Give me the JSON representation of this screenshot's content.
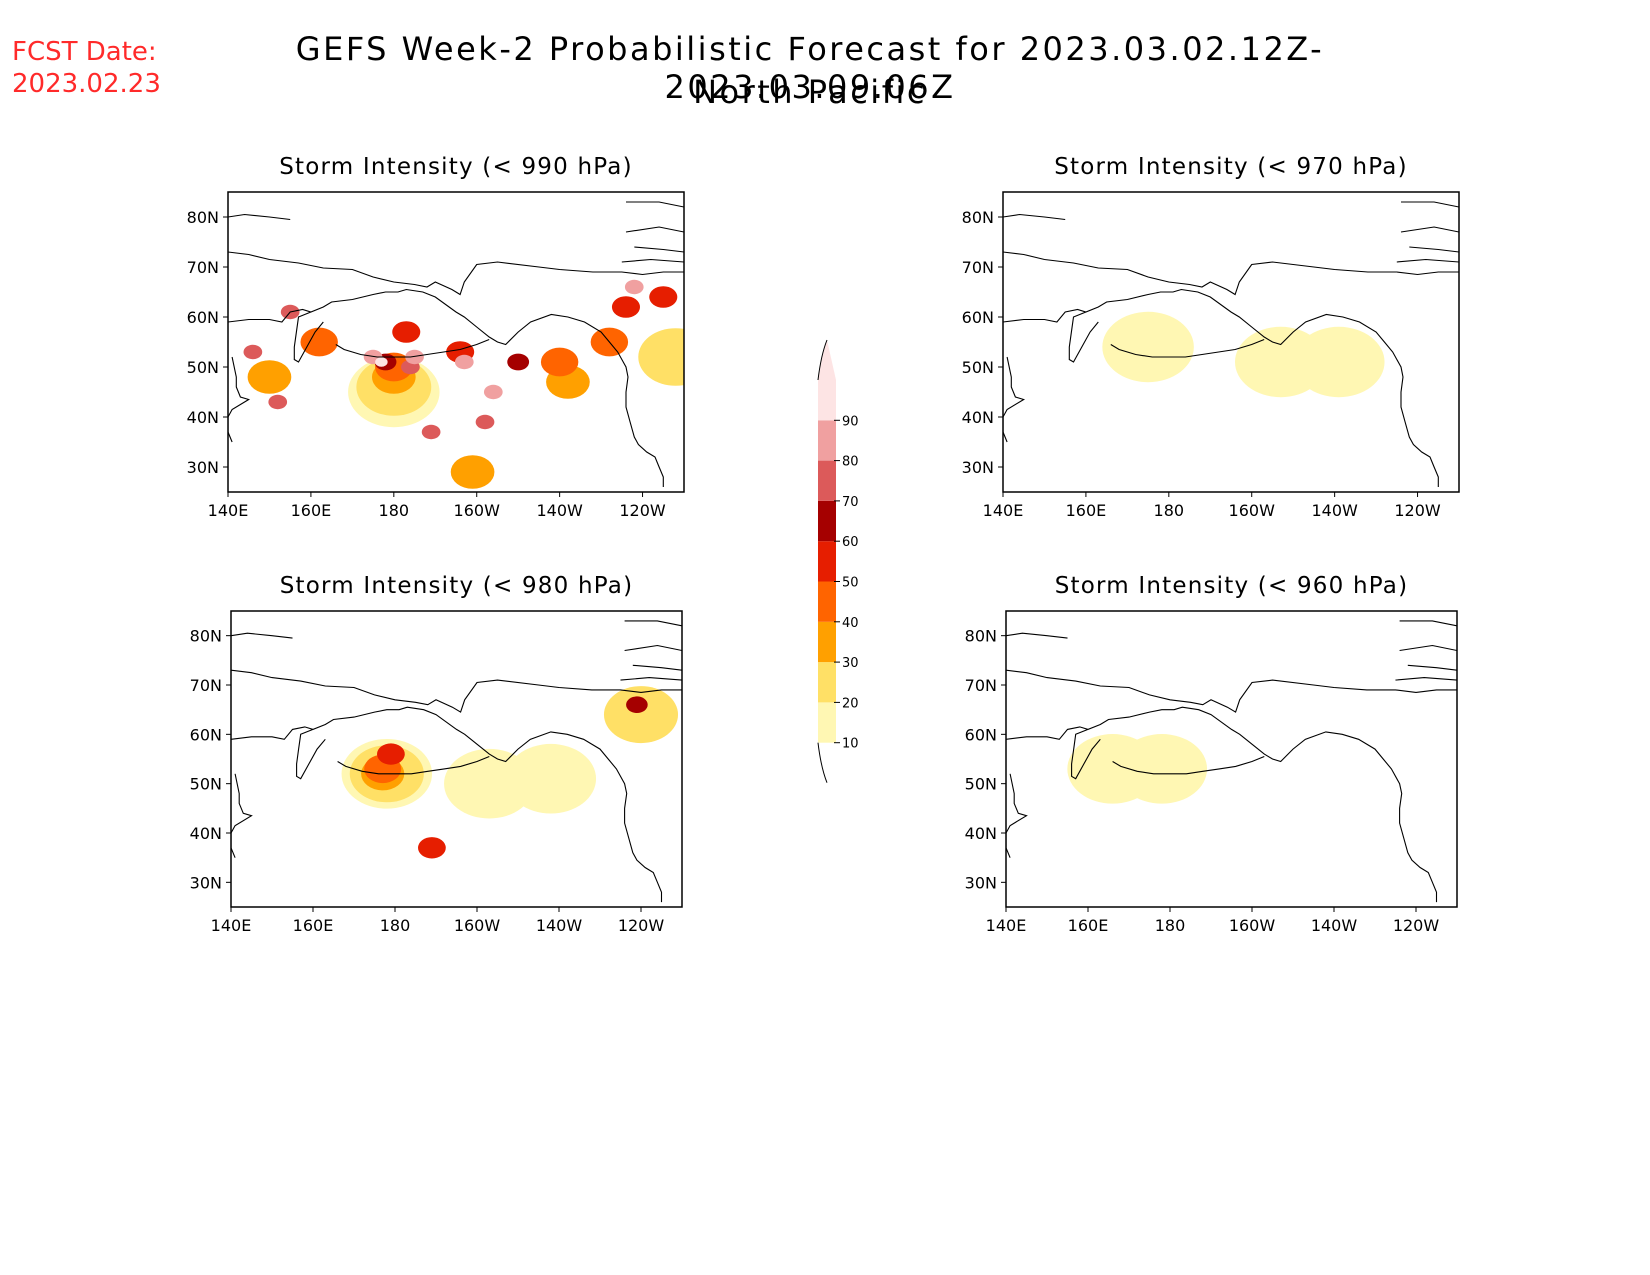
{
  "header": {
    "fcst_label": "FCST Date:",
    "fcst_date": "2023.02.23",
    "title": "GEFS Week-2 Probabilistic Forecast for 2023.03.02.12Z-2023.03.09.06Z",
    "region": "North Pacific"
  },
  "chart_data": [
    {
      "type": "heatmap",
      "title": "Storm Intensity (< 990 hPa)",
      "x_ticks": [
        "140E",
        "160E",
        "180",
        "160W",
        "140W",
        "120W"
      ],
      "y_ticks": [
        "80N",
        "70N",
        "60N",
        "50N",
        "40N",
        "30N"
      ],
      "xlim_deg_east": [
        140,
        250
      ],
      "ylim_deg_north": [
        25,
        85
      ],
      "regions": [
        {
          "lon": 177,
          "lat": 51,
          "level": 90
        },
        {
          "lon": 175,
          "lat": 52,
          "level": 80
        },
        {
          "lon": 185,
          "lat": 52,
          "level": 80
        },
        {
          "lon": 197,
          "lat": 51,
          "level": 80
        },
        {
          "lon": 204,
          "lat": 45,
          "level": 80
        },
        {
          "lon": 238,
          "lat": 66,
          "level": 80
        },
        {
          "lon": 184,
          "lat": 50,
          "level": 70
        },
        {
          "lon": 155,
          "lat": 61,
          "level": 70
        },
        {
          "lon": 146,
          "lat": 53,
          "level": 70
        },
        {
          "lon": 152,
          "lat": 43,
          "level": 70
        },
        {
          "lon": 189,
          "lat": 37,
          "level": 70
        },
        {
          "lon": 202,
          "lat": 39,
          "level": 70
        },
        {
          "lon": 178,
          "lat": 51,
          "level": 60
        },
        {
          "lon": 210,
          "lat": 51,
          "level": 60
        },
        {
          "lon": 183,
          "lat": 57,
          "level": 50
        },
        {
          "lon": 196,
          "lat": 53,
          "level": 50
        },
        {
          "lon": 236,
          "lat": 62,
          "level": 50
        },
        {
          "lon": 245,
          "lat": 64,
          "level": 50
        },
        {
          "lon": 180,
          "lat": 50,
          "level": 40
        },
        {
          "lon": 162,
          "lat": 55,
          "level": 40
        },
        {
          "lon": 220,
          "lat": 51,
          "level": 40
        },
        {
          "lon": 232,
          "lat": 55,
          "level": 40
        },
        {
          "lon": 180,
          "lat": 48,
          "level": 30
        },
        {
          "lon": 150,
          "lat": 48,
          "level": 30
        },
        {
          "lon": 222,
          "lat": 47,
          "level": 30
        },
        {
          "lon": 248,
          "lat": 52,
          "level": 20
        },
        {
          "lon": 199,
          "lat": 29,
          "level": 30
        },
        {
          "lon": 180,
          "lat": 46,
          "level": 20
        },
        {
          "lon": 180,
          "lat": 45,
          "level": 10
        }
      ]
    },
    {
      "type": "heatmap",
      "title": "Storm Intensity (< 970 hPa)",
      "x_ticks": [
        "140E",
        "160E",
        "180",
        "160W",
        "140W",
        "120W"
      ],
      "y_ticks": [
        "80N",
        "70N",
        "60N",
        "50N",
        "40N",
        "30N"
      ],
      "xlim_deg_east": [
        140,
        250
      ],
      "ylim_deg_north": [
        25,
        85
      ],
      "regions": [
        {
          "lon": 175,
          "lat": 54,
          "level": 10
        },
        {
          "lon": 207,
          "lat": 51,
          "level": 10
        },
        {
          "lon": 221,
          "lat": 51,
          "level": 10
        }
      ]
    },
    {
      "type": "heatmap",
      "title": "Storm Intensity (< 980 hPa)",
      "x_ticks": [
        "140E",
        "160E",
        "180",
        "160W",
        "140W",
        "120W"
      ],
      "y_ticks": [
        "80N",
        "70N",
        "60N",
        "50N",
        "40N",
        "30N"
      ],
      "xlim_deg_east": [
        140,
        250
      ],
      "ylim_deg_north": [
        25,
        85
      ],
      "regions": [
        {
          "lon": 177,
          "lat": 53,
          "level": 40
        },
        {
          "lon": 179,
          "lat": 56,
          "level": 50
        },
        {
          "lon": 239,
          "lat": 66,
          "level": 60
        },
        {
          "lon": 189,
          "lat": 37,
          "level": 50
        },
        {
          "lon": 177,
          "lat": 52,
          "level": 30
        },
        {
          "lon": 178,
          "lat": 52,
          "level": 20
        },
        {
          "lon": 178,
          "lat": 52,
          "level": 10
        },
        {
          "lon": 240,
          "lat": 64,
          "level": 20
        },
        {
          "lon": 203,
          "lat": 50,
          "level": 10
        },
        {
          "lon": 218,
          "lat": 51,
          "level": 10
        }
      ]
    },
    {
      "type": "heatmap",
      "title": "Storm Intensity (< 960 hPa)",
      "x_ticks": [
        "140E",
        "160E",
        "180",
        "160W",
        "140W",
        "120W"
      ],
      "y_ticks": [
        "80N",
        "70N",
        "60N",
        "50N",
        "40N",
        "30N"
      ],
      "xlim_deg_east": [
        140,
        250
      ],
      "ylim_deg_north": [
        25,
        85
      ],
      "regions": [
        {
          "lon": 166,
          "lat": 53,
          "level": 10
        },
        {
          "lon": 178,
          "lat": 53,
          "level": 10
        }
      ]
    }
  ],
  "colorbar": {
    "levels": [
      "10",
      "20",
      "30",
      "40",
      "50",
      "60",
      "70",
      "80",
      "90"
    ],
    "colors": [
      "#fff7b3",
      "#ffe066",
      "#ffa000",
      "#ff6400",
      "#e61e00",
      "#a50000",
      "#dc5a5a",
      "#f0a0a0",
      "#fde4e4"
    ]
  }
}
